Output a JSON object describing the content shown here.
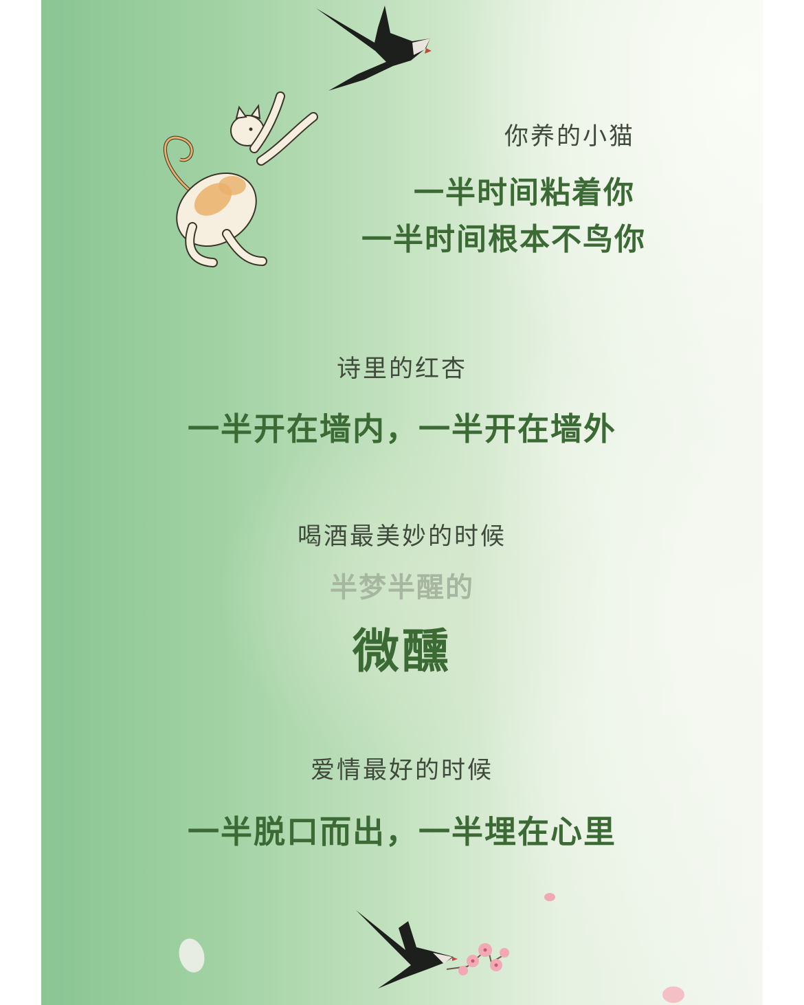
{
  "stanzas": [
    {
      "intro": "你养的小猫",
      "lines": [
        "一半时间粘着你",
        "一半时间根本不鸟你"
      ]
    },
    {
      "intro": "诗里的红杏",
      "lines": [
        "一半开在墙内，一半开在墙外"
      ]
    },
    {
      "intro": "喝酒最美妙的时候",
      "lines": [
        "半梦半醒的",
        "微醺"
      ]
    },
    {
      "intro": "爱情最好的时候",
      "lines": [
        "一半脱口而出，一半埋在心里"
      ]
    }
  ],
  "colors": {
    "text_green": "#3c6a35",
    "text_gray": "#3f4a3c",
    "bg_green": "#8ac594"
  }
}
